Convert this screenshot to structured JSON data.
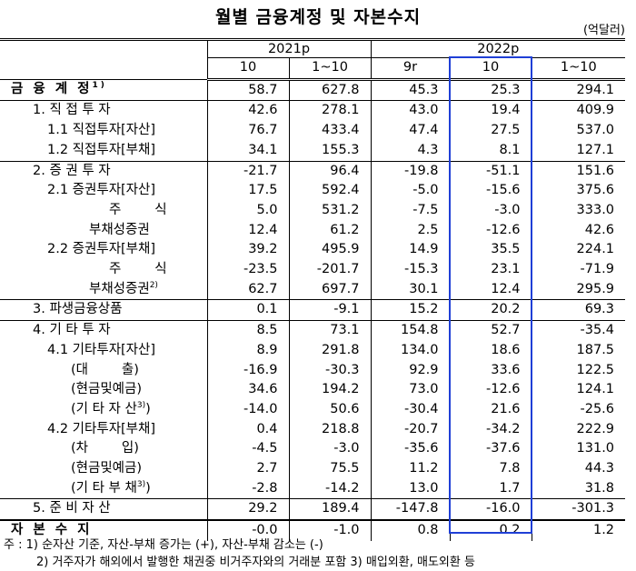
{
  "header": {
    "title": "월별 금융계정 및 자본수지",
    "unit": "(억달러)"
  },
  "table": {
    "groups": [
      {
        "label": "2021p",
        "span": 2
      },
      {
        "label": "2022p",
        "span": 3
      }
    ],
    "columns": [
      "10",
      "1~10",
      "9r",
      "10",
      "1~10"
    ],
    "rows": [
      {
        "label": "금 융 계 정",
        "note": "1)",
        "values": [
          "58.7",
          "627.8",
          "45.3",
          "25.3",
          "294.1"
        ]
      },
      {
        "label": "1. 직 접 투 자",
        "values": [
          "42.6",
          "278.1",
          "43.0",
          "19.4",
          "409.9"
        ]
      },
      {
        "label": "1.1 직접투자[자산]",
        "values": [
          "76.7",
          "433.4",
          "47.4",
          "27.5",
          "537.0"
        ]
      },
      {
        "label": "1.2 직접투자[부채]",
        "values": [
          "34.1",
          "155.3",
          "4.3",
          "8.1",
          "127.1"
        ]
      },
      {
        "label": "2. 증 권 투 자",
        "values": [
          "-21.7",
          "96.4",
          "-19.8",
          "-51.1",
          "151.6"
        ]
      },
      {
        "label": "2.1 증권투자[자산]",
        "values": [
          "17.5",
          "592.4",
          "-5.0",
          "-15.6",
          "375.6"
        ]
      },
      {
        "label": "주        식",
        "values": [
          "5.0",
          "531.2",
          "-7.5",
          "-3.0",
          "333.0"
        ]
      },
      {
        "label": "부채성증권",
        "values": [
          "12.4",
          "61.2",
          "2.5",
          "-12.6",
          "42.6"
        ]
      },
      {
        "label": "2.2 증권투자[부채]",
        "values": [
          "39.2",
          "495.9",
          "14.9",
          "35.5",
          "224.1"
        ]
      },
      {
        "label": "주        식",
        "values": [
          "-23.5",
          "-201.7",
          "-15.3",
          "23.1",
          "-71.9"
        ]
      },
      {
        "label": "부채성증권",
        "note": "2)",
        "values": [
          "62.7",
          "697.7",
          "30.1",
          "12.4",
          "295.9"
        ]
      },
      {
        "label": "3. 파생금융상품",
        "values": [
          "0.1",
          "-9.1",
          "15.2",
          "20.2",
          "69.3"
        ]
      },
      {
        "label": "4. 기 타 투 자",
        "values": [
          "8.5",
          "73.1",
          "154.8",
          "52.7",
          "-35.4"
        ]
      },
      {
        "label": "4.1 기타투자[자산]",
        "values": [
          "8.9",
          "291.8",
          "134.0",
          "18.6",
          "187.5"
        ]
      },
      {
        "label": "(대        출)",
        "values": [
          "-16.9",
          "-30.3",
          "92.9",
          "33.6",
          "122.5"
        ]
      },
      {
        "label": "(현금및예금)",
        "values": [
          "34.6",
          "194.2",
          "73.0",
          "-12.6",
          "124.1"
        ]
      },
      {
        "label": "(기 타 자 산",
        "note": "3)",
        "close": ")",
        "values": [
          "-14.0",
          "50.6",
          "-30.4",
          "21.6",
          "-25.6"
        ]
      },
      {
        "label": "4.2 기타투자[부채]",
        "values": [
          "0.4",
          "218.8",
          "-20.7",
          "-34.2",
          "222.9"
        ]
      },
      {
        "label": "(차        입)",
        "values": [
          "-4.5",
          "-3.0",
          "-35.6",
          "-37.6",
          "131.0"
        ]
      },
      {
        "label": "(현금및예금)",
        "values": [
          "2.7",
          "75.5",
          "11.2",
          "7.8",
          "44.3"
        ]
      },
      {
        "label": "(기 타 부 채",
        "note": "3)",
        "close": ")",
        "values": [
          "-2.8",
          "-14.2",
          "13.0",
          "1.7",
          "31.8"
        ]
      },
      {
        "label": "5. 준 비 자 산",
        "values": [
          "29.2",
          "189.4",
          "-147.8",
          "-16.0",
          "-301.3"
        ]
      },
      {
        "label": "자 본 수 지",
        "values": [
          "-0.0",
          "-1.0",
          "0.8",
          "0.2",
          "1.2"
        ]
      }
    ]
  },
  "footnotes": [
    "주 :  1) 순자산 기준, 자산-부채 증가는 (+), 자산-부채 감소는 (-)",
    "2) 거주자가 해외에서 발행한 채권중 비거주자와의 거래분 포함  3) 매입외환, 매도외환 등"
  ]
}
